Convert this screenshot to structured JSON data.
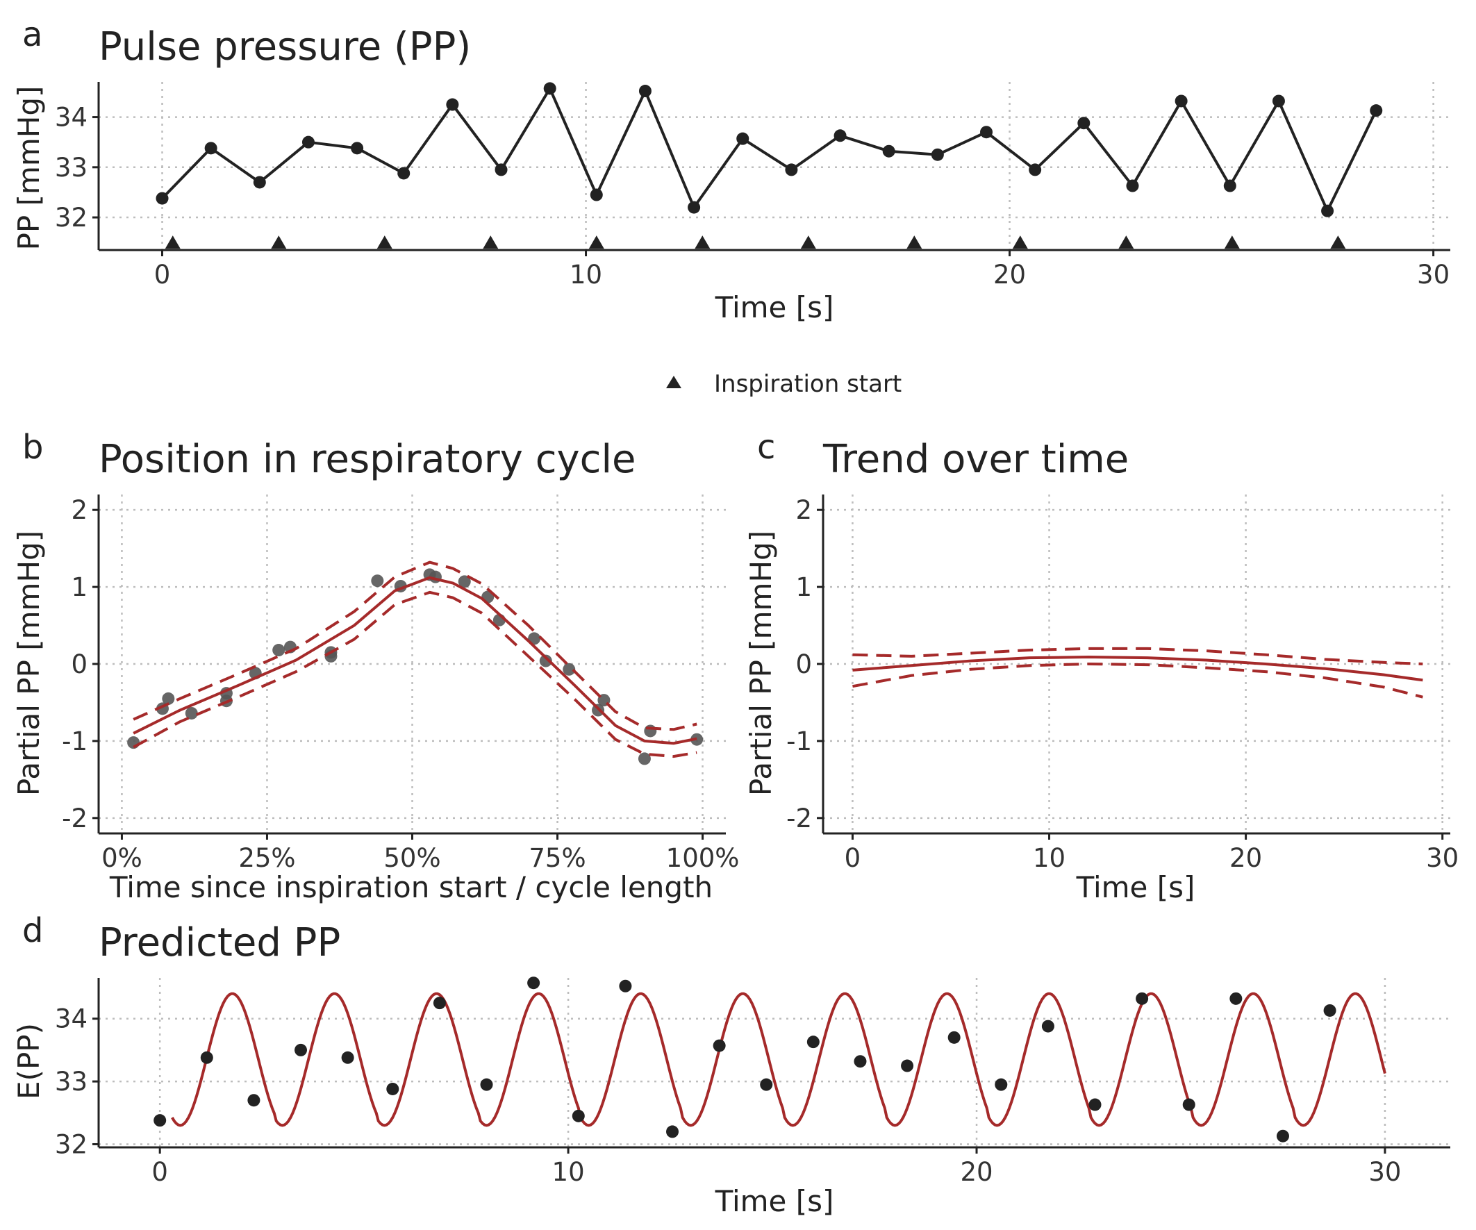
{
  "colors": {
    "ink": "#222222",
    "fit": "#a52a2a",
    "partial_point": "#555555"
  },
  "legend": {
    "marker": "triangle",
    "label": "Inspiration start"
  },
  "chart_data": [
    {
      "id": "a",
      "letter": "a",
      "type": "line",
      "title": "Pulse pressure (PP)",
      "xlabel": "Time [s]",
      "ylabel": "PP [mmHg]",
      "xlim": [
        -1.5,
        30.4
      ],
      "ylim": [
        31.35,
        34.7
      ],
      "xticks": [
        0,
        10,
        20,
        30
      ],
      "xtick_labels": [
        "0",
        "10",
        "20",
        "30"
      ],
      "yticks": [
        32,
        33,
        34
      ],
      "ytick_labels": [
        "32",
        "33",
        "34"
      ],
      "grid": true,
      "series": [
        {
          "kind": "line-points",
          "color": "#222222",
          "x": [
            0.0,
            1.15,
            2.3,
            3.45,
            4.6,
            5.7,
            6.85,
            8.0,
            9.15,
            10.25,
            11.4,
            12.55,
            13.7,
            14.85,
            16.0,
            17.15,
            18.3,
            19.45,
            20.6,
            21.75,
            22.9,
            24.05,
            25.2,
            26.35,
            27.5,
            28.65
          ],
          "y": [
            32.38,
            33.38,
            32.7,
            33.5,
            33.38,
            32.88,
            34.25,
            32.95,
            34.57,
            32.45,
            34.52,
            32.2,
            33.57,
            32.95,
            33.63,
            33.32,
            33.25,
            33.7,
            32.95,
            33.88,
            32.63,
            34.32,
            32.63,
            34.32,
            32.13,
            34.13
          ]
        },
        {
          "kind": "triangle-markers",
          "color": "#222222",
          "x": [
            0.25,
            2.75,
            5.25,
            7.75,
            10.25,
            12.75,
            15.25,
            17.75,
            20.25,
            22.75,
            25.25,
            27.75
          ],
          "y_at": 31.5
        }
      ]
    },
    {
      "id": "b",
      "letter": "b",
      "type": "scatter",
      "title": "Position in respiratory cycle",
      "xlabel": "Time since inspiration start / cycle length",
      "ylabel": "Partial PP [mmHg]",
      "xlim": [
        -0.04,
        1.04
      ],
      "ylim": [
        -2.2,
        2.2
      ],
      "xticks": [
        0,
        0.25,
        0.5,
        0.75,
        1.0
      ],
      "xtick_labels": [
        "0%",
        "25%",
        "50%",
        "75%",
        "100%"
      ],
      "yticks": [
        2,
        1,
        0,
        -1,
        -2
      ],
      "ytick_labels": [
        "2",
        "1",
        "0",
        "-1",
        "-2"
      ],
      "grid": true,
      "series": [
        {
          "kind": "points",
          "color": "#555555",
          "x": [
            0.02,
            0.07,
            0.08,
            0.12,
            0.18,
            0.18,
            0.23,
            0.27,
            0.29,
            0.36,
            0.36,
            0.44,
            0.48,
            0.53,
            0.54,
            0.59,
            0.63,
            0.65,
            0.71,
            0.73,
            0.77,
            0.82,
            0.83,
            0.9,
            0.91,
            0.99
          ],
          "y": [
            -1.02,
            -0.58,
            -0.45,
            -0.64,
            -0.48,
            -0.38,
            -0.12,
            0.18,
            0.22,
            0.1,
            0.15,
            1.08,
            1.01,
            1.16,
            1.13,
            1.07,
            0.87,
            0.57,
            0.33,
            0.04,
            -0.07,
            -0.6,
            -0.47,
            -1.23,
            -0.87,
            -0.98
          ]
        },
        {
          "kind": "fit",
          "color": "#a52a2a",
          "x": [
            0.02,
            0.1,
            0.2,
            0.3,
            0.4,
            0.47,
            0.53,
            0.57,
            0.62,
            0.7,
            0.78,
            0.85,
            0.9,
            0.95,
            0.99
          ],
          "y": [
            -0.9,
            -0.6,
            -0.28,
            0.05,
            0.5,
            0.95,
            1.12,
            1.05,
            0.85,
            0.3,
            -0.28,
            -0.8,
            -1.0,
            -1.03,
            -0.97
          ]
        },
        {
          "kind": "ci-upper",
          "color": "#a52a2a",
          "x": [
            0.02,
            0.1,
            0.2,
            0.3,
            0.4,
            0.47,
            0.53,
            0.57,
            0.62,
            0.7,
            0.78,
            0.85,
            0.9,
            0.95,
            0.99
          ],
          "y": [
            -0.72,
            -0.45,
            -0.13,
            0.2,
            0.68,
            1.13,
            1.32,
            1.24,
            1.04,
            0.5,
            -0.1,
            -0.62,
            -0.83,
            -0.85,
            -0.78
          ]
        },
        {
          "kind": "ci-lower",
          "color": "#a52a2a",
          "x": [
            0.02,
            0.1,
            0.2,
            0.3,
            0.4,
            0.47,
            0.53,
            0.57,
            0.62,
            0.7,
            0.78,
            0.85,
            0.9,
            0.95,
            0.99
          ],
          "y": [
            -1.08,
            -0.75,
            -0.43,
            -0.1,
            0.32,
            0.77,
            0.93,
            0.86,
            0.66,
            0.1,
            -0.46,
            -0.98,
            -1.17,
            -1.2,
            -1.15
          ]
        }
      ]
    },
    {
      "id": "c",
      "letter": "c",
      "type": "line",
      "title": "Trend over time",
      "xlabel": "Time [s]",
      "ylabel": "Partial PP [mmHg]",
      "xlim": [
        -1.5,
        30.4
      ],
      "ylim": [
        -2.2,
        2.2
      ],
      "xticks": [
        0,
        10,
        20,
        30
      ],
      "xtick_labels": [
        "0",
        "10",
        "20",
        "30"
      ],
      "yticks": [
        2,
        1,
        0,
        -1,
        -2
      ],
      "ytick_labels": [
        "2",
        "1",
        "0",
        "-1",
        "-2"
      ],
      "grid": true,
      "series": [
        {
          "kind": "fit",
          "color": "#a52a2a",
          "x": [
            0,
            3,
            6,
            9,
            12,
            15,
            18,
            21,
            24,
            27,
            29
          ],
          "y": [
            -0.08,
            -0.02,
            0.04,
            0.08,
            0.09,
            0.08,
            0.05,
            0.0,
            -0.06,
            -0.14,
            -0.21
          ]
        },
        {
          "kind": "ci-upper",
          "color": "#a52a2a",
          "x": [
            0,
            3,
            6,
            9,
            12,
            15,
            18,
            21,
            24,
            27,
            29
          ],
          "y": [
            0.12,
            0.1,
            0.14,
            0.18,
            0.2,
            0.2,
            0.17,
            0.12,
            0.06,
            0.02,
            0.0
          ]
        },
        {
          "kind": "ci-lower",
          "color": "#a52a2a",
          "x": [
            0,
            3,
            6,
            9,
            12,
            15,
            18,
            21,
            24,
            27,
            29
          ],
          "y": [
            -0.29,
            -0.15,
            -0.07,
            -0.02,
            0.0,
            -0.01,
            -0.05,
            -0.1,
            -0.18,
            -0.3,
            -0.43
          ]
        }
      ]
    },
    {
      "id": "d",
      "letter": "d",
      "type": "line",
      "title": "Predicted PP",
      "xlabel": "Time [s]",
      "ylabel": "E(PP)",
      "xlim": [
        -1.5,
        31.6
      ],
      "ylim": [
        31.95,
        34.65
      ],
      "xticks": [
        0,
        10,
        20,
        30
      ],
      "xtick_labels": [
        "0",
        "10",
        "20",
        "30"
      ],
      "yticks": [
        32,
        33,
        34
      ],
      "ytick_labels": [
        "32",
        "33",
        "34"
      ],
      "grid": true,
      "series": [
        {
          "kind": "points",
          "color": "#222222",
          "x": [
            0.0,
            1.15,
            2.3,
            3.45,
            4.6,
            5.7,
            6.85,
            8.0,
            9.15,
            10.25,
            11.4,
            12.55,
            13.7,
            14.85,
            16.0,
            17.15,
            18.3,
            19.45,
            20.6,
            21.75,
            22.9,
            24.05,
            25.2,
            26.35,
            27.5,
            28.65
          ],
          "y": [
            32.38,
            33.38,
            32.7,
            33.5,
            33.38,
            32.88,
            34.25,
            32.95,
            34.57,
            32.45,
            34.52,
            32.2,
            33.57,
            32.95,
            33.63,
            33.32,
            33.25,
            33.7,
            32.95,
            33.88,
            32.63,
            34.32,
            32.63,
            34.32,
            32.13,
            34.13
          ]
        },
        {
          "kind": "predicted",
          "color": "#a52a2a",
          "cycle_starts": [
            0.3,
            2.8,
            5.3,
            7.8,
            10.3,
            12.8,
            15.3,
            17.8,
            20.3,
            22.8,
            25.3,
            27.8
          ],
          "t_end": 30.0
        }
      ]
    }
  ]
}
